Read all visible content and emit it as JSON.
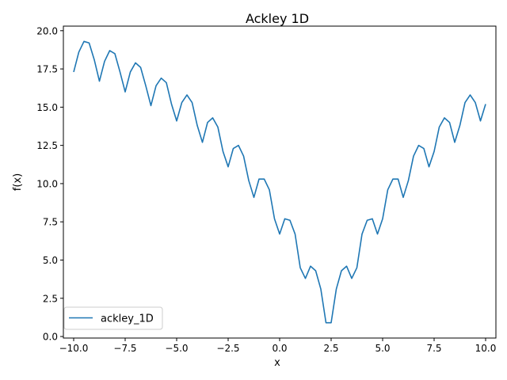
{
  "chart_data": {
    "type": "line",
    "title": "Ackley 1D",
    "xlabel": "x",
    "ylabel": "f(x)",
    "xlim": [
      -10.5,
      10.5
    ],
    "ylim": [
      -0.1,
      20.3
    ],
    "xticks": [
      -10,
      -7.5,
      -5,
      -2.5,
      0,
      2.5,
      5,
      7.5,
      10
    ],
    "xtick_labels": [
      "−10.0",
      "−7.5",
      "−5.0",
      "−2.5",
      "0.0",
      "2.5",
      "5.0",
      "7.5",
      "10.0"
    ],
    "yticks": [
      0,
      2.5,
      5,
      7.5,
      10,
      12.5,
      15,
      17.5,
      20
    ],
    "ytick_labels": [
      "0.0",
      "2.5",
      "5.0",
      "7.5",
      "10.0",
      "12.5",
      "15.0",
      "17.5",
      "20.0"
    ],
    "grid": false,
    "legend_position": "lower-left",
    "series": [
      {
        "name": "ackley_1D",
        "color": "#1f77b4",
        "x": [
          -10.0,
          -9.75,
          -9.5,
          -9.25,
          -9.0,
          -8.75,
          -8.5,
          -8.25,
          -8.0,
          -7.75,
          -7.5,
          -7.25,
          -7.0,
          -6.75,
          -6.5,
          -6.25,
          -6.0,
          -5.75,
          -5.5,
          -5.25,
          -5.0,
          -4.75,
          -4.5,
          -4.25,
          -4.0,
          -3.75,
          -3.5,
          -3.25,
          -3.0,
          -2.75,
          -2.5,
          -2.25,
          -2.0,
          -1.75,
          -1.5,
          -1.25,
          -1.0,
          -0.75,
          -0.5,
          -0.25,
          0.0,
          0.25,
          0.5,
          0.75,
          1.0,
          1.25,
          1.5,
          1.75,
          2.0,
          2.25,
          2.5,
          2.75,
          3.0,
          3.25,
          3.5,
          3.75,
          4.0,
          4.25,
          4.5,
          4.75,
          5.0,
          5.25,
          5.5,
          5.75,
          6.0,
          6.25,
          6.5,
          6.75,
          7.0,
          7.25,
          7.5,
          7.75,
          8.0,
          8.25,
          8.5,
          8.75,
          9.0,
          9.25,
          9.5,
          9.75,
          10.0
        ],
        "y": [
          17.3,
          18.6,
          19.3,
          19.2,
          18.1,
          16.7,
          18.0,
          18.7,
          18.5,
          17.3,
          16.0,
          17.3,
          17.9,
          17.6,
          16.4,
          15.1,
          16.4,
          16.9,
          16.6,
          15.2,
          14.1,
          15.3,
          15.8,
          15.3,
          13.8,
          12.7,
          14.0,
          14.3,
          13.7,
          12.1,
          11.1,
          12.3,
          12.5,
          11.8,
          10.2,
          9.1,
          10.3,
          10.3,
          9.6,
          7.7,
          6.7,
          7.7,
          7.6,
          6.7,
          4.5,
          3.8,
          4.6,
          4.3,
          3.1,
          0.9,
          0.9,
          3.1,
          4.3,
          4.6,
          3.8,
          4.5,
          6.7,
          7.6,
          7.7,
          6.7,
          7.7,
          9.6,
          10.3,
          10.3,
          9.1,
          10.2,
          11.8,
          12.5,
          12.3,
          11.1,
          12.1,
          13.7,
          14.3,
          14.0,
          12.7,
          13.8,
          15.3,
          15.8,
          15.3,
          14.1,
          15.2
        ]
      }
    ]
  }
}
